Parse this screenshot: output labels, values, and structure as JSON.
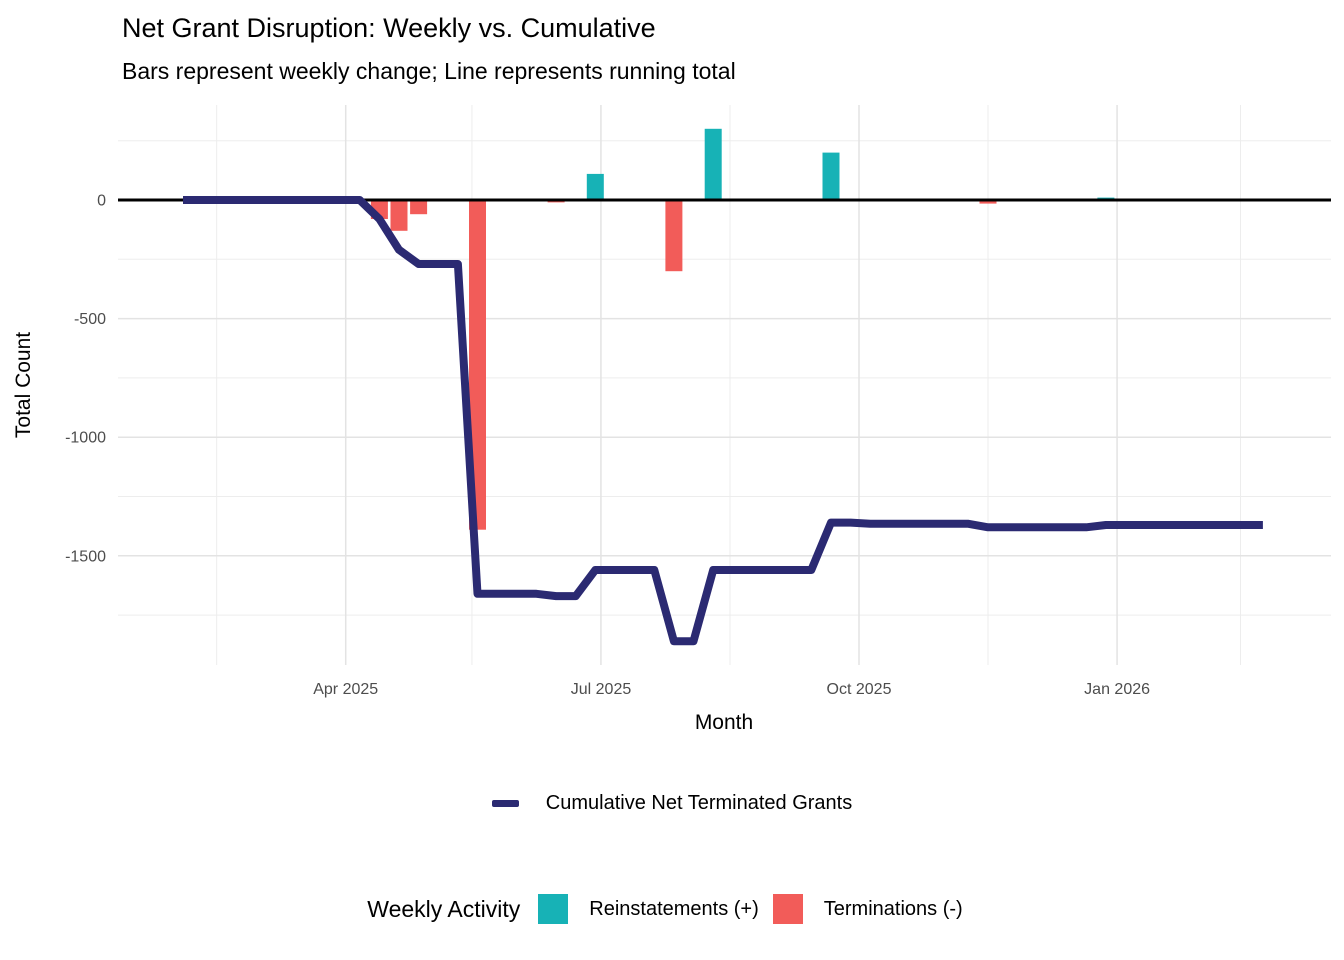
{
  "title": "Net Grant Disruption: Weekly vs. Cumulative",
  "subtitle": "Bars represent weekly change; Line represents running total",
  "colors": {
    "line": "#2B2A72",
    "reinstatement": "#17B2B6",
    "termination": "#F25C59",
    "axis_line": "#000000",
    "grid_major": "#E3E3E3",
    "grid_minor": "#EDEDED",
    "tick_text": "#4D4D4D"
  },
  "legend_line": {
    "label": "Cumulative Net Terminated Grants"
  },
  "legend_bars": {
    "title": "Weekly Activity",
    "items": [
      {
        "label": "Reinstatements (+)",
        "color": "#17B2B6"
      },
      {
        "label": "Terminations (-)",
        "color": "#F25C59"
      }
    ]
  },
  "chart_data": {
    "type": "combo",
    "title": "Net Grant Disruption: Weekly vs. Cumulative",
    "subtitle": "Bars represent weekly change; Line represents running total",
    "xlabel": "Month",
    "ylabel": "Total Count",
    "x_range": [
      "2025-02-02",
      "2026-02-22"
    ],
    "ylim": [
      -1960,
      400
    ],
    "grid": true,
    "legend_position": "bottom",
    "x_major_ticks": [
      {
        "date": "2025-04-01",
        "label": "Apr 2025"
      },
      {
        "date": "2025-07-01",
        "label": "Jul 2025"
      },
      {
        "date": "2025-10-01",
        "label": "Oct 2025"
      },
      {
        "date": "2026-01-01",
        "label": "Jan 2026"
      }
    ],
    "x_minor_ticks": [
      "2025-02-14",
      "2025-05-16",
      "2025-08-16",
      "2025-11-16",
      "2026-02-14"
    ],
    "y_major_ticks": [
      {
        "value": 0,
        "label": "0"
      },
      {
        "value": -500,
        "label": "-500"
      },
      {
        "value": -1000,
        "label": "-1000"
      },
      {
        "value": -1500,
        "label": "-1500"
      }
    ],
    "y_minor_ticks": [
      250,
      -250,
      -750,
      -1250,
      -1750
    ],
    "series": [
      {
        "name": "Weekly Activity",
        "type": "bar",
        "points": [
          {
            "date": "2025-04-13",
            "value": -80
          },
          {
            "date": "2025-04-20",
            "value": -130
          },
          {
            "date": "2025-04-27",
            "value": -60
          },
          {
            "date": "2025-05-18",
            "value": -1390
          },
          {
            "date": "2025-06-15",
            "value": -10
          },
          {
            "date": "2025-06-29",
            "value": 110
          },
          {
            "date": "2025-07-27",
            "value": -300
          },
          {
            "date": "2025-08-10",
            "value": 300
          },
          {
            "date": "2025-09-21",
            "value": 200
          },
          {
            "date": "2025-10-05",
            "value": -5
          },
          {
            "date": "2025-11-16",
            "value": -15
          },
          {
            "date": "2025-12-28",
            "value": 10
          }
        ]
      },
      {
        "name": "Cumulative Net Terminated Grants",
        "type": "line",
        "points": [
          [
            "2025-02-02",
            0
          ],
          [
            "2025-02-09",
            0
          ],
          [
            "2025-02-16",
            0
          ],
          [
            "2025-02-23",
            0
          ],
          [
            "2025-03-02",
            0
          ],
          [
            "2025-03-09",
            0
          ],
          [
            "2025-03-16",
            0
          ],
          [
            "2025-03-23",
            0
          ],
          [
            "2025-03-30",
            0
          ],
          [
            "2025-04-06",
            0
          ],
          [
            "2025-04-13",
            -80
          ],
          [
            "2025-04-20",
            -210
          ],
          [
            "2025-04-27",
            -270
          ],
          [
            "2025-05-04",
            -270
          ],
          [
            "2025-05-11",
            -270
          ],
          [
            "2025-05-18",
            -1660
          ],
          [
            "2025-05-25",
            -1660
          ],
          [
            "2025-06-01",
            -1660
          ],
          [
            "2025-06-08",
            -1660
          ],
          [
            "2025-06-15",
            -1670
          ],
          [
            "2025-06-22",
            -1670
          ],
          [
            "2025-06-29",
            -1560
          ],
          [
            "2025-07-06",
            -1560
          ],
          [
            "2025-07-13",
            -1560
          ],
          [
            "2025-07-20",
            -1560
          ],
          [
            "2025-07-27",
            -1860
          ],
          [
            "2025-08-03",
            -1860
          ],
          [
            "2025-08-10",
            -1560
          ],
          [
            "2025-08-17",
            -1560
          ],
          [
            "2025-08-24",
            -1560
          ],
          [
            "2025-08-31",
            -1560
          ],
          [
            "2025-09-07",
            -1560
          ],
          [
            "2025-09-14",
            -1560
          ],
          [
            "2025-09-21",
            -1360
          ],
          [
            "2025-09-28",
            -1360
          ],
          [
            "2025-10-05",
            -1365
          ],
          [
            "2025-10-12",
            -1365
          ],
          [
            "2025-10-19",
            -1365
          ],
          [
            "2025-10-26",
            -1365
          ],
          [
            "2025-11-02",
            -1365
          ],
          [
            "2025-11-09",
            -1365
          ],
          [
            "2025-11-16",
            -1380
          ],
          [
            "2025-11-23",
            -1380
          ],
          [
            "2025-11-30",
            -1380
          ],
          [
            "2025-12-07",
            -1380
          ],
          [
            "2025-12-14",
            -1380
          ],
          [
            "2025-12-21",
            -1380
          ],
          [
            "2025-12-28",
            -1370
          ],
          [
            "2026-01-04",
            -1370
          ],
          [
            "2026-01-11",
            -1370
          ],
          [
            "2026-01-18",
            -1370
          ],
          [
            "2026-01-25",
            -1370
          ],
          [
            "2026-02-01",
            -1370
          ],
          [
            "2026-02-08",
            -1370
          ],
          [
            "2026-02-15",
            -1370
          ],
          [
            "2026-02-22",
            -1370
          ]
        ]
      }
    ]
  }
}
